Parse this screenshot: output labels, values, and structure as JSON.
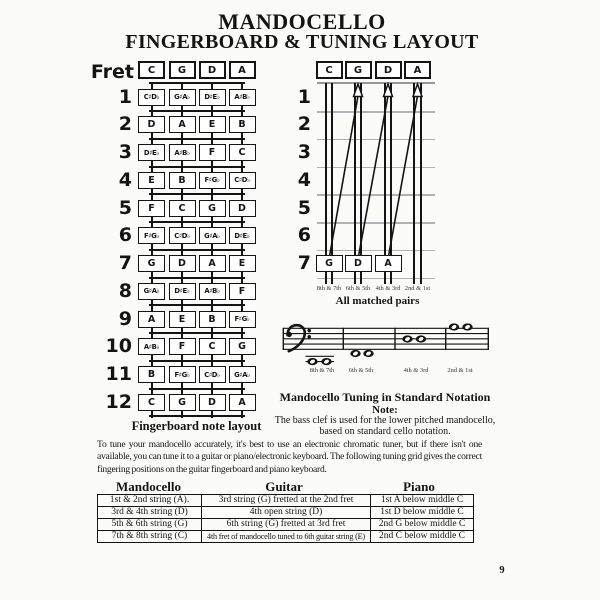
{
  "title": {
    "line1": "MANDOCELLO",
    "line2": "FINGERBOARD & TUNING LAYOUT"
  },
  "fingerboard": {
    "fret_label": "Fret",
    "open_strings": [
      "C",
      "G",
      "D",
      "A"
    ],
    "caption": "Fingerboard note layout",
    "frets": [
      {
        "number": "1",
        "notes": [
          "C♯D♭",
          "G♯A♭",
          "D♯E♭",
          "A♯B♭"
        ]
      },
      {
        "number": "2",
        "notes": [
          "D",
          "A",
          "E",
          "B"
        ]
      },
      {
        "number": "3",
        "notes": [
          "D♯E♭",
          "A♯B♭",
          "F",
          "C"
        ]
      },
      {
        "number": "4",
        "notes": [
          "E",
          "B",
          "F♯G♭",
          "C♯D♭"
        ]
      },
      {
        "number": "5",
        "notes": [
          "F",
          "C",
          "G",
          "D"
        ]
      },
      {
        "number": "6",
        "notes": [
          "F♯G♭",
          "C♯D♭",
          "G♯A♭",
          "D♯E♭"
        ]
      },
      {
        "number": "7",
        "notes": [
          "G",
          "D",
          "A",
          "E"
        ]
      },
      {
        "number": "8",
        "notes": [
          "G♯A♭",
          "D♯E♭",
          "A♯B♭",
          "F"
        ]
      },
      {
        "number": "9",
        "notes": [
          "A",
          "E",
          "B",
          "F♯G♭"
        ]
      },
      {
        "number": "10",
        "notes": [
          "A♯B♭",
          "F",
          "C",
          "G"
        ]
      },
      {
        "number": "11",
        "notes": [
          "B",
          "F♯G♭",
          "C♯D♭",
          "G♯A♭"
        ]
      },
      {
        "number": "12",
        "notes": [
          "C",
          "G",
          "D",
          "A"
        ]
      }
    ]
  },
  "tuning_grid": {
    "open_strings": [
      "C",
      "G",
      "D",
      "A"
    ],
    "fret_numbers": [
      "1",
      "2",
      "3",
      "4",
      "5",
      "6",
      "7"
    ],
    "fret7_boxes": [
      "G",
      "D",
      "A"
    ],
    "pair_labels": [
      "8th & 7th",
      "6th & 5th",
      "4th & 3rd",
      "2nd & 1st"
    ],
    "caption": "All matched pairs"
  },
  "notation": {
    "pair_labels": [
      "8th & 7th",
      "6th & 5th",
      "4th & 3rd",
      "2nd & 1st"
    ],
    "caption": "Mandocello Tuning in Standard Notation",
    "note_heading": "Note:",
    "note_line1": "The bass clef is used for the lower pitched mandocello,",
    "note_line2": "based on standard cello notation."
  },
  "paragraph": "To tune your mandocello accurately, it's best to use an electronic chromatic tuner, but if there isn't one available, you can tune it to a guitar or piano/electronic keyboard. The following tuning grid gives the correct fingering positions on the guitar fingerboard and piano keyboard.",
  "table": {
    "headers": [
      "Mandocello",
      "Guitar",
      "Piano"
    ],
    "rows": [
      [
        "1st & 2nd string (A).",
        "3rd string (G) fretted at the 2nd fret",
        "1st A below middle C"
      ],
      [
        "3rd & 4th string (D)",
        "4th open string (D)",
        "1st D below middle C"
      ],
      [
        "5th & 6th string (G)",
        "6th string (G) fretted at 3rd fret",
        "2nd G below middle C"
      ],
      [
        "7th & 8th string (C)",
        "4th fret of mandocello tuned to 6th guitar string (E)",
        "2nd C below middle C"
      ]
    ]
  },
  "page": {
    "number": "9"
  },
  "colors": {
    "ink": "#141414",
    "fretline_light": "#b4b1b6",
    "paper": "#fbfbf9"
  }
}
